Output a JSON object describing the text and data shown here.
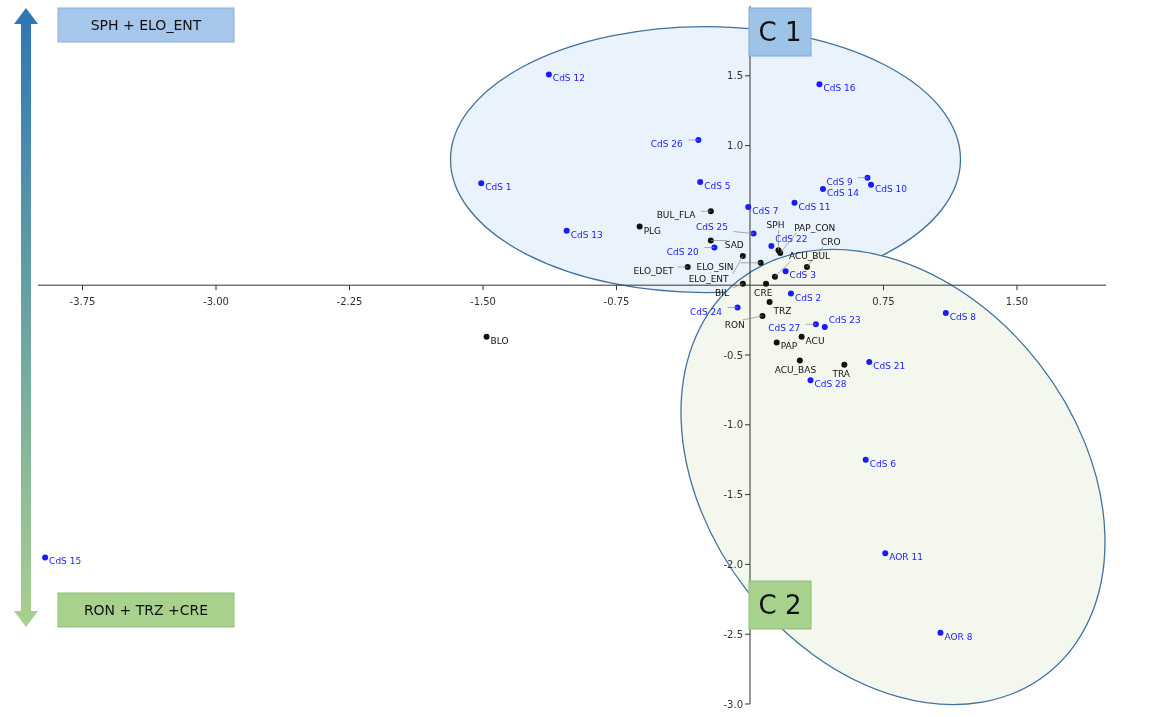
{
  "chart_data": {
    "type": "scatter",
    "marker": "circle",
    "grid": false,
    "xlim": [
      -4.0,
      2.0
    ],
    "ylim": [
      -3.0,
      2.0
    ],
    "xticks": [
      -3.75,
      {
        "value": -3,
        "label": "-3.00"
      },
      -2.25,
      {
        "value": -1.5,
        "label": "-1.50"
      },
      -0.75,
      {
        "value": 0.75,
        "label": "0.75"
      },
      {
        "value": 1.5,
        "label": "1.50"
      }
    ],
    "yticks": [
      {
        "value": 1.5,
        "label": "1.5"
      },
      {
        "value": 1,
        "label": "1.0"
      },
      -0.5,
      {
        "value": -1,
        "label": "-1.0"
      },
      -1.5,
      {
        "value": -2,
        "label": "-2.0"
      },
      -2.5,
      {
        "value": -3,
        "label": "-3.0"
      }
    ],
    "series": [
      {
        "color": "#1a1aff",
        "x": [
          -1.13,
          0.39,
          -0.29,
          -1.51,
          -0.28,
          0.66,
          0.68,
          0.41,
          0.25,
          -0.01,
          -1.03,
          0.02,
          -0.2,
          0.12,
          0.2,
          0.23,
          -0.07,
          0.37,
          0.42,
          0.67,
          0.34,
          1.1,
          0.65,
          0.76,
          1.07,
          -3.96
        ],
        "values": [
          1.51,
          1.44,
          1.04,
          0.73,
          0.74,
          0.77,
          0.72,
          0.69,
          0.59,
          0.56,
          0.39,
          0.37,
          0.27,
          0.28,
          0.1,
          -0.06,
          -0.16,
          -0.28,
          -0.3,
          -0.55,
          -0.68,
          -0.2,
          -1.25,
          -1.92,
          -2.49,
          -1.95
        ]
      },
      {
        "color": "#111111",
        "x": [
          -0.22,
          -0.62,
          -0.22,
          0.16,
          0.17,
          -0.04,
          -0.35,
          0.06,
          0.32,
          0.14,
          -0.04,
          0.09,
          0.11,
          0.07,
          0.29,
          0.15,
          0.28,
          0.53,
          -1.48
        ],
        "values": [
          0.53,
          0.42,
          0.32,
          0.25,
          0.23,
          0.21,
          0.13,
          0.16,
          0.13,
          0.06,
          0.01,
          0.01,
          -0.12,
          -0.22,
          -0.37,
          -0.41,
          -0.54,
          -0.57,
          -0.37
        ]
      }
    ],
    "annotations": [
      "C 1",
      "C 2",
      "SPH + ELO_ENT",
      "RON + TRZ +CRE",
      {
        "text": "CdS 12",
        "x": -1.13,
        "y": 1.51
      },
      {
        "text": "CdS 16",
        "x": 0.39,
        "y": 1.44
      },
      {
        "text": "CdS 26",
        "x": -0.29,
        "y": 1.04
      },
      {
        "text": "CdS 1",
        "x": -1.51,
        "y": 0.73
      },
      {
        "text": "CdS 5",
        "x": -0.28,
        "y": 0.74
      },
      {
        "text": "CdS 9",
        "x": 0.66,
        "y": 0.77
      },
      {
        "text": "CdS 10",
        "x": 0.68,
        "y": 0.72
      },
      {
        "text": "CdS 14",
        "x": 0.41,
        "y": 0.69
      },
      {
        "text": "CdS 11",
        "x": 0.25,
        "y": 0.59
      },
      {
        "text": "CdS 7",
        "x": -0.01,
        "y": 0.56
      },
      {
        "text": "CdS 13",
        "x": -1.03,
        "y": 0.39
      },
      {
        "text": "CdS 25",
        "x": 0.02,
        "y": 0.37
      },
      {
        "text": "CdS 20",
        "x": -0.2,
        "y": 0.27
      },
      {
        "text": "CdS 22",
        "x": 0.12,
        "y": 0.28
      },
      {
        "text": "CdS 3",
        "x": 0.2,
        "y": 0.1
      },
      {
        "text": "CdS 2",
        "x": 0.23,
        "y": -0.06
      },
      {
        "text": "CdS 24",
        "x": -0.07,
        "y": -0.16
      },
      {
        "text": "CdS 27",
        "x": 0.37,
        "y": -0.28
      },
      {
        "text": "CdS 23",
        "x": 0.42,
        "y": -0.3
      },
      {
        "text": "CdS 21",
        "x": 0.67,
        "y": -0.55
      },
      {
        "text": "CdS 28",
        "x": 0.34,
        "y": -0.68
      },
      {
        "text": "CdS 8",
        "x": 1.1,
        "y": -0.2
      },
      {
        "text": "CdS 6",
        "x": 0.65,
        "y": -1.25
      },
      {
        "text": "AOR 11",
        "x": 0.76,
        "y": -1.92
      },
      {
        "text": "AOR 8",
        "x": 1.07,
        "y": -2.49
      },
      {
        "text": "CdS 15",
        "x": -3.96,
        "y": -1.95
      },
      {
        "text": "BUL_FLA",
        "x": -0.22,
        "y": 0.53
      },
      {
        "text": "PLG",
        "x": -0.62,
        "y": 0.42
      },
      {
        "text": "SAD",
        "x": -0.22,
        "y": 0.32
      },
      {
        "text": "SPH",
        "x": 0.16,
        "y": 0.25
      },
      {
        "text": "PAP_CON",
        "x": 0.17,
        "y": 0.23
      },
      {
        "text": "ELO_ENT",
        "x": -0.04,
        "y": 0.21
      },
      {
        "text": "ELO_DET",
        "x": -0.35,
        "y": 0.13
      },
      {
        "text": "ELO_SIN",
        "x": 0.06,
        "y": 0.16
      },
      {
        "text": "CRO",
        "x": 0.32,
        "y": 0.13
      },
      {
        "text": "ACU_BUL",
        "x": 0.14,
        "y": 0.06
      },
      {
        "text": "BIL",
        "x": -0.04,
        "y": 0.01
      },
      {
        "text": "CRE",
        "x": 0.09,
        "y": 0.01
      },
      {
        "text": "TRZ",
        "x": 0.11,
        "y": -0.12
      },
      {
        "text": "RON",
        "x": 0.07,
        "y": -0.22
      },
      {
        "text": "ACU",
        "x": 0.29,
        "y": -0.37
      },
      {
        "text": "PAP",
        "x": 0.15,
        "y": -0.41
      },
      {
        "text": "ACU_BAS",
        "x": 0.28,
        "y": -0.54
      },
      {
        "text": "TRA",
        "x": 0.53,
        "y": -0.57
      },
      {
        "text": "BLO",
        "x": -1.48,
        "y": -0.37
      }
    ]
  }
}
